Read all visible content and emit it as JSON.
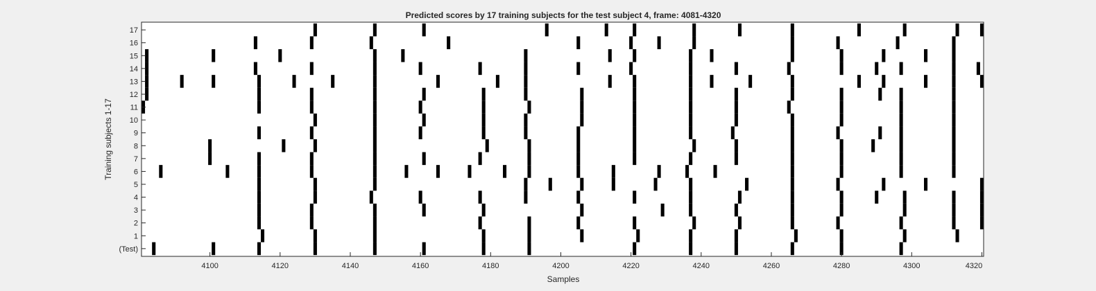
{
  "chart_data": {
    "type": "heatmap",
    "title": "Predicted scores by 17 training subjects for the test subject 4, frame: 4081-4320",
    "xlabel": "Samples",
    "ylabel": "Training subjects 1-17",
    "xlim": [
      4081,
      4320
    ],
    "xticks": [
      4100,
      4120,
      4140,
      4160,
      4180,
      4200,
      4220,
      4240,
      4260,
      4280,
      4300,
      4320
    ],
    "y_categories": [
      "(Test)",
      "1",
      "2",
      "3",
      "4",
      "5",
      "6",
      "7",
      "8",
      "9",
      "10",
      "11",
      "12",
      "13",
      "14",
      "15",
      "16",
      "17"
    ],
    "grid": false,
    "colors": {
      "mark": "#000000",
      "background": "#ffffff",
      "figure": "#f0f0f0"
    },
    "rows": [
      {
        "label": "(Test)",
        "x": [
          4084,
          4101,
          4114,
          4130,
          4147,
          4161,
          4178,
          4191,
          4221,
          4237,
          4250,
          4266,
          4280,
          4297
        ]
      },
      {
        "label": "1",
        "x": [
          4115,
          4130,
          4147,
          4178,
          4191,
          4206,
          4222,
          4237,
          4250,
          4267,
          4280,
          4298,
          4313
        ]
      },
      {
        "label": "2",
        "x": [
          4114,
          4129,
          4147,
          4177,
          4191,
          4205,
          4221,
          4238,
          4251,
          4266,
          4279,
          4297,
          4312,
          4320
        ]
      },
      {
        "label": "3",
        "x": [
          4114,
          4129,
          4147,
          4161,
          4178,
          4206,
          4229,
          4237,
          4250,
          4266,
          4280,
          4298,
          4312,
          4320
        ]
      },
      {
        "label": "4",
        "x": [
          4114,
          4130,
          4146,
          4160,
          4177,
          4190,
          4205,
          4221,
          4237,
          4251,
          4266,
          4280,
          4290,
          4298,
          4312,
          4320
        ]
      },
      {
        "label": "5",
        "x": [
          4114,
          4130,
          4147,
          4190,
          4197,
          4206,
          4215,
          4227,
          4237,
          4253,
          4266,
          4279,
          4292,
          4304,
          4320
        ]
      },
      {
        "label": "6",
        "x": [
          4086,
          4105,
          4114,
          4129,
          4147,
          4156,
          4165,
          4174,
          4184,
          4191,
          4205,
          4215,
          4228,
          4236,
          4244,
          4266,
          4280,
          4297,
          4312
        ]
      },
      {
        "label": "7",
        "x": [
          4100,
          4114,
          4129,
          4147,
          4161,
          4177,
          4191,
          4205,
          4221,
          4237,
          4250,
          4266,
          4280,
          4297,
          4312
        ]
      },
      {
        "label": "8",
        "x": [
          4100,
          4121,
          4130,
          4147,
          4179,
          4191,
          4205,
          4221,
          4238,
          4250,
          4266,
          4280,
          4289,
          4297,
          4312
        ]
      },
      {
        "label": "9",
        "x": [
          4114,
          4129,
          4147,
          4160,
          4178,
          4190,
          4205,
          4221,
          4237,
          4249,
          4266,
          4279,
          4291,
          4297,
          4312
        ]
      },
      {
        "label": "10",
        "x": [
          4130,
          4147,
          4161,
          4178,
          4190,
          4206,
          4221,
          4237,
          4250,
          4266,
          4280,
          4297,
          4312
        ]
      },
      {
        "label": "11",
        "x": [
          4081,
          4114,
          4129,
          4147,
          4160,
          4178,
          4191,
          4206,
          4221,
          4237,
          4250,
          4265,
          4280,
          4297,
          4312
        ]
      },
      {
        "label": "12",
        "x": [
          4082,
          4114,
          4129,
          4147,
          4161,
          4178,
          4190,
          4206,
          4221,
          4237,
          4250,
          4266,
          4280,
          4291,
          4297,
          4312
        ]
      },
      {
        "label": "13",
        "x": [
          4082,
          4092,
          4101,
          4114,
          4124,
          4135,
          4147,
          4165,
          4182,
          4190,
          4214,
          4221,
          4237,
          4243,
          4254,
          4266,
          4285,
          4292,
          4304,
          4312,
          4320
        ]
      },
      {
        "label": "14",
        "x": [
          4082,
          4113,
          4129,
          4147,
          4160,
          4177,
          4190,
          4205,
          4220,
          4237,
          4250,
          4265,
          4280,
          4290,
          4297,
          4312,
          4319
        ]
      },
      {
        "label": "15",
        "x": [
          4082,
          4101,
          4120,
          4147,
          4155,
          4190,
          4214,
          4221,
          4237,
          4243,
          4266,
          4280,
          4292,
          4304,
          4312
        ]
      },
      {
        "label": "16",
        "x": [
          4113,
          4129,
          4146,
          4168,
          4205,
          4220,
          4228,
          4238,
          4266,
          4279,
          4296,
          4312
        ]
      },
      {
        "label": "17",
        "x": [
          4130,
          4147,
          4161,
          4196,
          4213,
          4221,
          4238,
          4251,
          4266,
          4285,
          4298,
          4313,
          4320
        ]
      }
    ]
  }
}
